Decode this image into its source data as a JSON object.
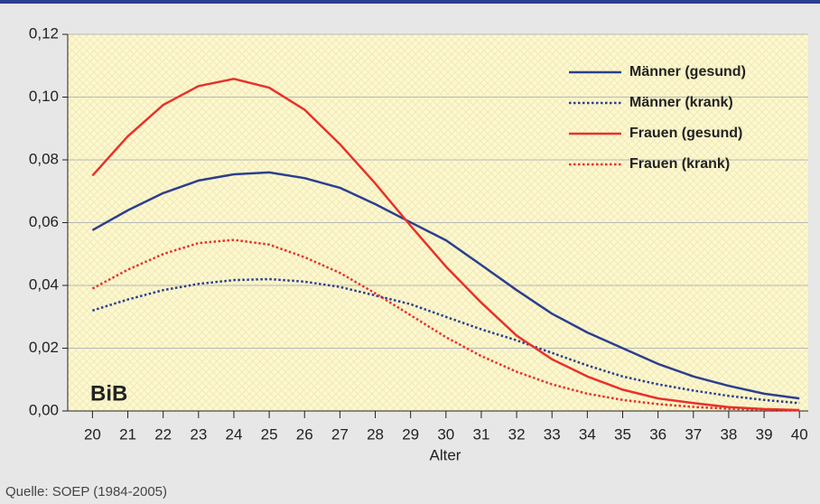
{
  "chart_data": {
    "type": "line",
    "x_label": "Alter",
    "annotation": "BiB",
    "source": "Quelle: SOEP (1984-2005)",
    "x": [
      20,
      21,
      22,
      23,
      24,
      25,
      26,
      27,
      28,
      29,
      30,
      31,
      32,
      33,
      34,
      35,
      36,
      37,
      38,
      39,
      40
    ],
    "xlim": [
      19.3,
      40.25
    ],
    "xticks": [
      20,
      21,
      22,
      23,
      24,
      25,
      26,
      27,
      28,
      29,
      30,
      31,
      32,
      33,
      34,
      35,
      36,
      37,
      38,
      39,
      40
    ],
    "ylim": [
      0,
      0.12
    ],
    "yticks": [
      {
        "value": 0,
        "label": "0,00"
      },
      {
        "value": 0.02,
        "label": "0,02"
      },
      {
        "value": 0.04,
        "label": "0,04"
      },
      {
        "value": 0.06,
        "label": "0,06"
      },
      {
        "value": 0.08,
        "label": "0,08"
      },
      {
        "value": 0.1,
        "label": "0,10"
      },
      {
        "value": 0.12,
        "label": "0,12"
      }
    ],
    "grid": true,
    "legend": "top-right",
    "series": [
      {
        "name": "Männer (gesund)",
        "color": "#2b3f8f",
        "style": "solid",
        "values": [
          0.0576,
          0.0639,
          0.0694,
          0.0734,
          0.0754,
          0.076,
          0.0742,
          0.0711,
          0.0659,
          0.0601,
          0.0544,
          0.0465,
          0.0385,
          0.031,
          0.025,
          0.02,
          0.015,
          0.011,
          0.008,
          0.0055,
          0.004
        ]
      },
      {
        "name": "Männer (krank)",
        "color": "#2b3f8f",
        "style": "dotted",
        "values": [
          0.032,
          0.0355,
          0.0385,
          0.0405,
          0.0417,
          0.042,
          0.0412,
          0.0395,
          0.0368,
          0.034,
          0.03,
          0.026,
          0.0225,
          0.0185,
          0.0145,
          0.011,
          0.0085,
          0.0065,
          0.0048,
          0.0035,
          0.0025
        ]
      },
      {
        "name": "Frauen (gesund)",
        "color": "#e8312a",
        "style": "solid",
        "values": [
          0.075,
          0.0875,
          0.0975,
          0.1035,
          0.1058,
          0.103,
          0.096,
          0.085,
          0.0725,
          0.059,
          0.046,
          0.0345,
          0.024,
          0.0165,
          0.011,
          0.0068,
          0.004,
          0.0025,
          0.0012,
          0.0006,
          0.0003
        ]
      },
      {
        "name": "Frauen (krank)",
        "color": "#e8312a",
        "style": "dotted",
        "values": [
          0.039,
          0.045,
          0.05,
          0.0535,
          0.0545,
          0.053,
          0.049,
          0.044,
          0.0375,
          0.0305,
          0.0235,
          0.0175,
          0.0125,
          0.0085,
          0.0055,
          0.0035,
          0.0022,
          0.0013,
          0.0007,
          0.0004,
          0.0002
        ]
      }
    ]
  }
}
